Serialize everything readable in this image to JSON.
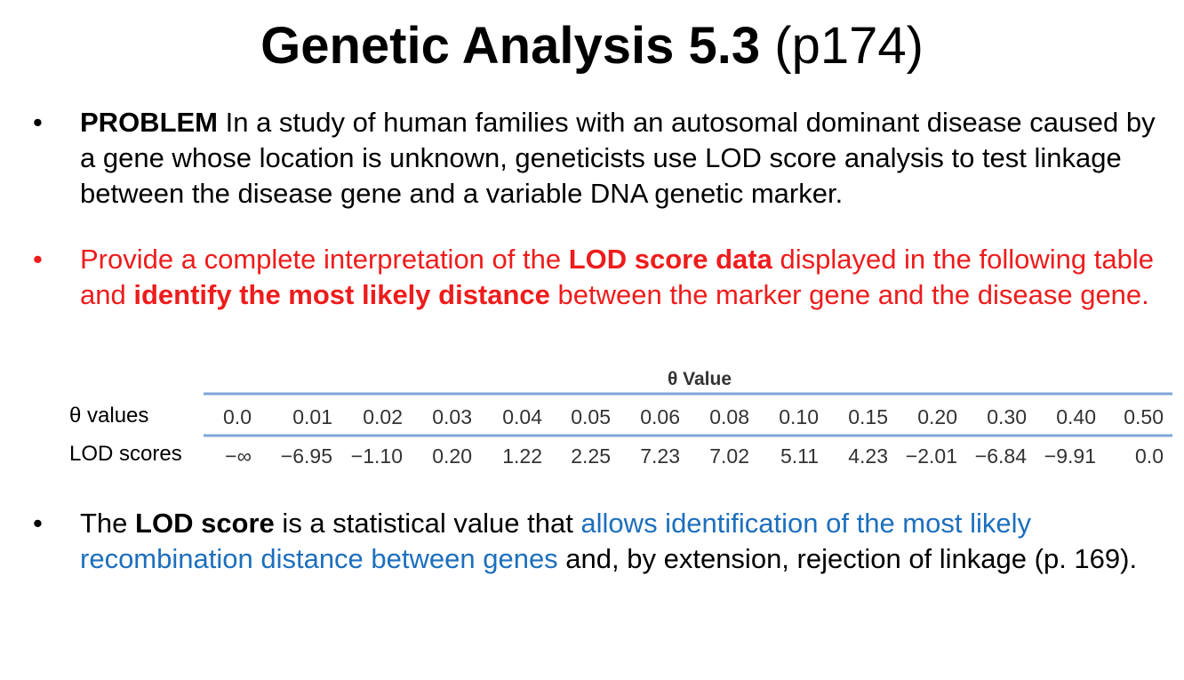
{
  "title": {
    "bold": "Genetic Analysis 5.3",
    "normal": "(p174)"
  },
  "bullet_char": "•",
  "bullets": {
    "problem": {
      "label": "PROBLEM",
      "text": " In a study of human families with an autosomal dominant disease caused by a gene whose location is unknown, geneticists use LOD score analysis to test linkage between the disease gene and a variable DNA genetic marker."
    },
    "task": {
      "t1": "Provide a complete interpretation of the ",
      "b1": "LOD score data",
      "t2": " displayed in the following table and ",
      "b2": "identify the most likely distance",
      "t3": " between the marker gene and the disease gene."
    },
    "lod": {
      "t1": "The ",
      "b1": "LOD score",
      "t2": " is a statistical value that ",
      "blue": "allows identification of the most likely recombination distance between genes",
      "t3": " and, by extension, rejection of linkage (p. 169)."
    }
  },
  "table": {
    "header": "θ Value",
    "row_labels": {
      "theta": "θ values",
      "lod": "LOD scores"
    },
    "theta_values": [
      "0.0",
      "0.01",
      "0.02",
      "0.03",
      "0.04",
      "0.05",
      "0.06",
      "0.08",
      "0.10",
      "0.15",
      "0.20",
      "0.30",
      "0.40",
      "0.50"
    ],
    "lod_scores": [
      "−∞",
      "−6.95",
      "−1.10",
      "0.20",
      "1.22",
      "2.25",
      "7.23",
      "7.02",
      "5.11",
      "4.23",
      "−2.01",
      "−6.84",
      "−9.91",
      "0.0"
    ],
    "rule_color": "#7fa6d9"
  }
}
